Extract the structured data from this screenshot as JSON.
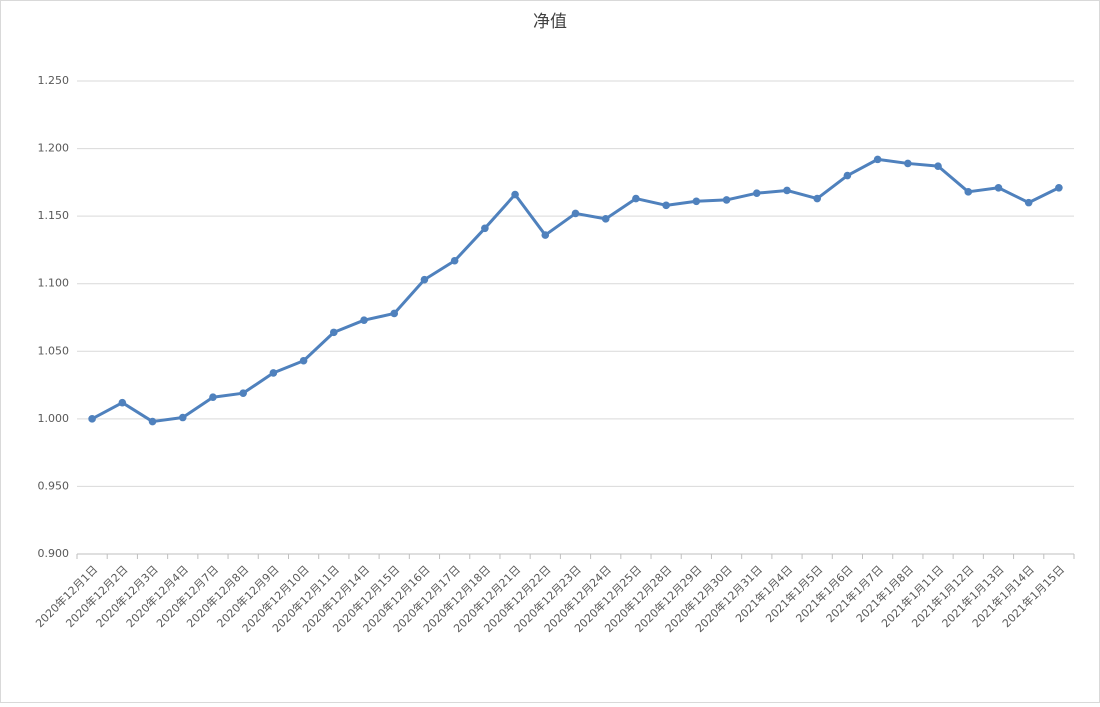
{
  "chart_data": {
    "type": "line",
    "title": "净值",
    "categories": [
      "2020年12月1日",
      "2020年12月2日",
      "2020年12月3日",
      "2020年12月4日",
      "2020年12月7日",
      "2020年12月8日",
      "2020年12月9日",
      "2020年12月10日",
      "2020年12月11日",
      "2020年12月14日",
      "2020年12月15日",
      "2020年12月16日",
      "2020年12月17日",
      "2020年12月18日",
      "2020年12月21日",
      "2020年12月22日",
      "2020年12月23日",
      "2020年12月24日",
      "2020年12月25日",
      "2020年12月28日",
      "2020年12月29日",
      "2020年12月30日",
      "2020年12月31日",
      "2021年1月4日",
      "2021年1月5日",
      "2021年1月6日",
      "2021年1月7日",
      "2021年1月8日",
      "2021年1月11日",
      "2021年1月12日",
      "2021年1月13日",
      "2021年1月14日",
      "2021年1月15日"
    ],
    "values": [
      1.0,
      1.012,
      0.998,
      1.001,
      1.016,
      1.019,
      1.034,
      1.043,
      1.064,
      1.073,
      1.078,
      1.103,
      1.117,
      1.141,
      1.166,
      1.136,
      1.152,
      1.148,
      1.163,
      1.158,
      1.161,
      1.162,
      1.167,
      1.169,
      1.163,
      1.18,
      1.192,
      1.189,
      1.187,
      1.168,
      1.171,
      1.16,
      1.171
    ],
    "color": "#4f81bd",
    "ylim": [
      0.9,
      1.25
    ],
    "yticks": [
      {
        "value": 0.9,
        "label": "0.900"
      },
      {
        "value": 0.95,
        "label": "0.950"
      },
      {
        "value": 1.0,
        "label": "1.000"
      },
      {
        "value": 1.05,
        "label": "1.050"
      },
      {
        "value": 1.1,
        "label": "1.100"
      },
      {
        "value": 1.15,
        "label": "1.150"
      },
      {
        "value": 1.2,
        "label": "1.200"
      },
      {
        "value": 1.25,
        "label": "1.250"
      }
    ],
    "grid": true
  }
}
